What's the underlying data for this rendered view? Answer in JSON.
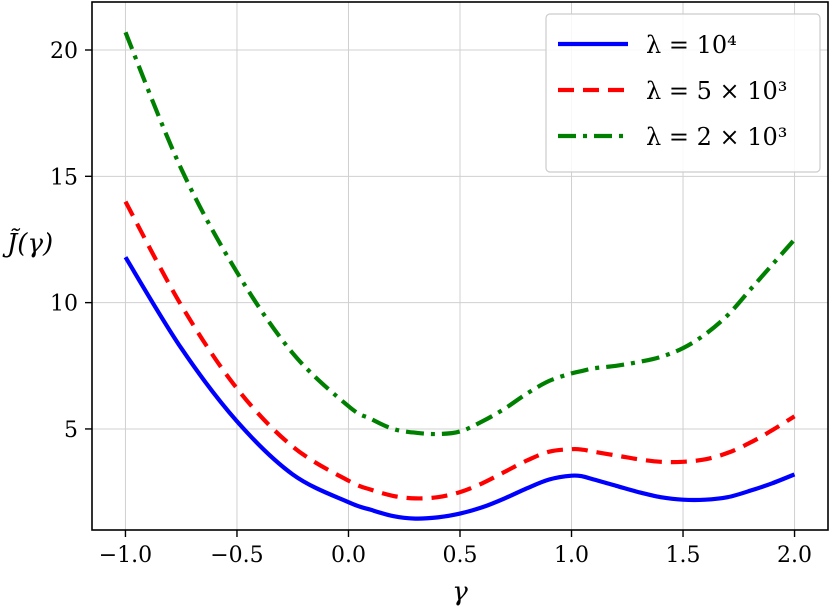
{
  "chart_data": {
    "type": "line",
    "title": "",
    "xlabel": "γ",
    "ylabel": "J̃(γ)",
    "xlim": [
      -1.15,
      2.15
    ],
    "ylim": [
      1.0,
      21.9
    ],
    "xticks": [
      -1.0,
      -0.5,
      0.0,
      0.5,
      1.0,
      1.5,
      2.0
    ],
    "xtick_labels": [
      "−1.0",
      "−0.5",
      "0.0",
      "0.5",
      "1.0",
      "1.5",
      "2.0"
    ],
    "yticks": [
      5,
      10,
      15,
      20
    ],
    "ytick_labels": [
      "5",
      "10",
      "15",
      "20"
    ],
    "grid": true,
    "legend_position": "top-right",
    "x": [
      -1.0,
      -0.75,
      -0.5,
      -0.25,
      0.0,
      0.1,
      0.2,
      0.3,
      0.4,
      0.5,
      0.6,
      0.7,
      0.8,
      0.9,
      1.0,
      1.05,
      1.1,
      1.2,
      1.3,
      1.4,
      1.5,
      1.6,
      1.7,
      1.8,
      1.9,
      2.0
    ],
    "series": [
      {
        "name": "λ = 10⁴",
        "color": "#0000ff",
        "style": "solid",
        "values": [
          11.8,
          8.2,
          5.3,
          3.2,
          2.1,
          1.8,
          1.55,
          1.45,
          1.5,
          1.65,
          1.9,
          2.25,
          2.65,
          3.0,
          3.15,
          3.12,
          3.0,
          2.75,
          2.5,
          2.3,
          2.2,
          2.2,
          2.3,
          2.55,
          2.85,
          3.2
        ]
      },
      {
        "name": "λ = 5 × 10³",
        "color": "#ff0000",
        "style": "dashed",
        "values": [
          14.0,
          9.9,
          6.6,
          4.3,
          2.95,
          2.6,
          2.35,
          2.25,
          2.3,
          2.5,
          2.85,
          3.3,
          3.75,
          4.1,
          4.2,
          4.18,
          4.1,
          3.95,
          3.8,
          3.7,
          3.7,
          3.8,
          4.05,
          4.45,
          4.95,
          5.5
        ]
      },
      {
        "name": "λ = 2 × 10³",
        "color": "#008000",
        "style": "dashdot",
        "values": [
          20.7,
          15.3,
          11.2,
          8.0,
          5.9,
          5.4,
          5.0,
          4.85,
          4.8,
          4.9,
          5.3,
          5.8,
          6.4,
          6.9,
          7.2,
          7.3,
          7.4,
          7.5,
          7.65,
          7.85,
          8.2,
          8.75,
          9.5,
          10.5,
          11.5,
          12.5
        ]
      }
    ]
  }
}
